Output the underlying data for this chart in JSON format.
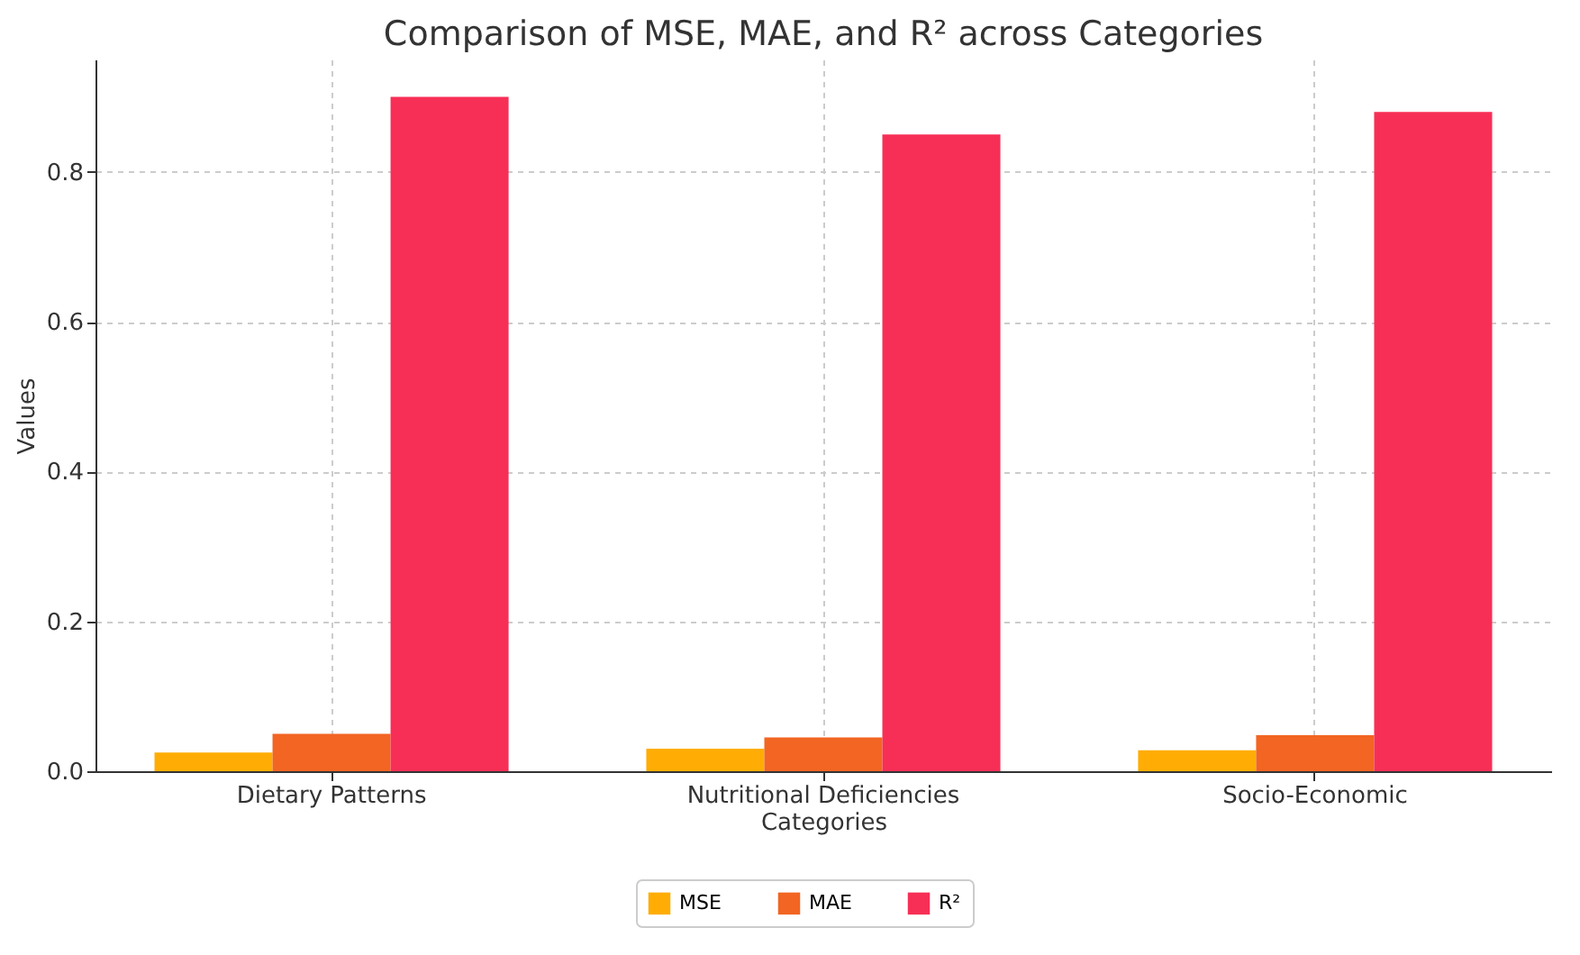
{
  "chart_data": {
    "type": "bar",
    "title": "Comparison of MSE, MAE, and R² across Categories",
    "xlabel": "Categories",
    "ylabel": "Values",
    "categories": [
      "Dietary Patterns",
      "Nutritional Deficiencies",
      "Socio-Economic"
    ],
    "series": [
      {
        "name": "MSE",
        "color": "#ffad05",
        "values": [
          0.025,
          0.03,
          0.028
        ]
      },
      {
        "name": "MAE",
        "color": "#f26522",
        "values": [
          0.05,
          0.045,
          0.048
        ]
      },
      {
        "name": "R²",
        "color": "#f72f56",
        "values": [
          0.9,
          0.85,
          0.88
        ]
      }
    ],
    "ylim": [
      0,
      0.95
    ],
    "yticks": [
      {
        "value": 0,
        "label": "0.0"
      },
      0.2,
      0.4,
      0.6,
      0.8
    ],
    "grid": true,
    "legend": "bottom"
  }
}
